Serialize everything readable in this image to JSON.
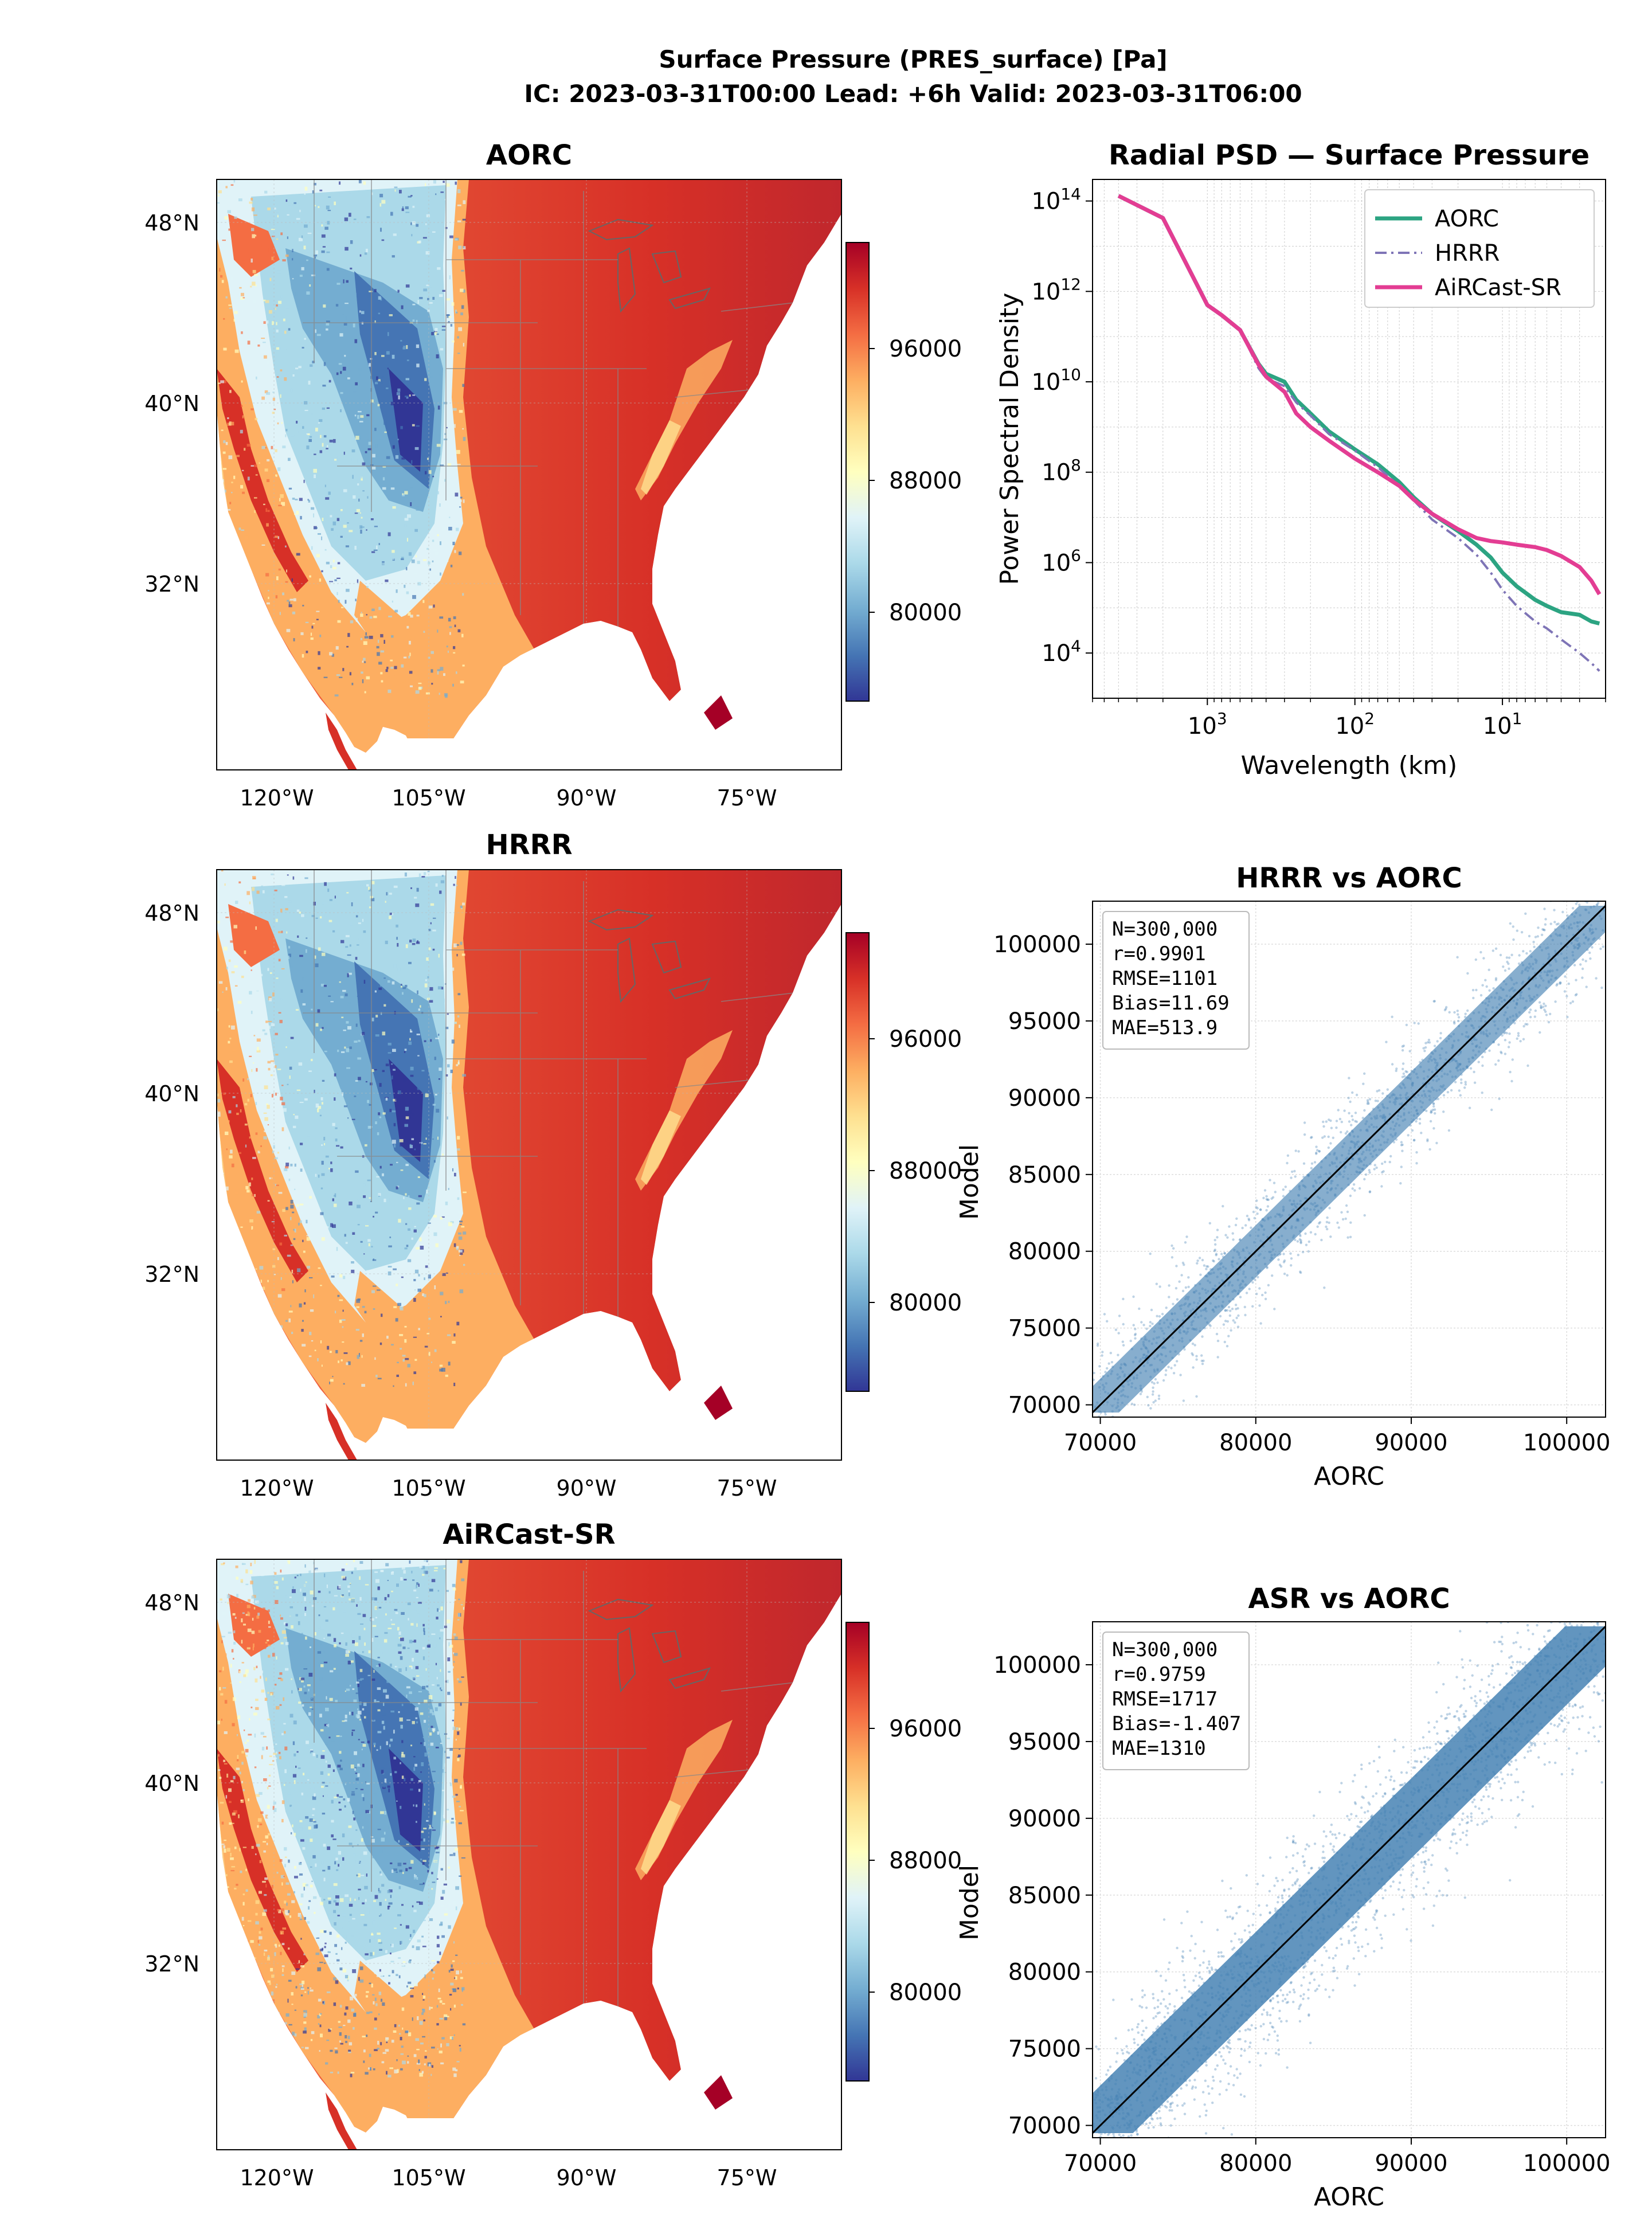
{
  "suptitle": {
    "line1": "Surface Pressure (PRES_surface) [Pa]",
    "line2": "IC: 2023-03-31T00:00  Lead: +6h  Valid: 2023-03-31T06:00"
  },
  "colors": {
    "aorc": "#2ca482",
    "hrrr": "#7e74b6",
    "aircast": "#e33d93",
    "scatter": "#4682b4"
  },
  "maps": {
    "lat_ticks": [
      "48°N",
      "40°N",
      "32°N"
    ],
    "lon_ticks": [
      "120°W",
      "105°W",
      "90°W",
      "75°W"
    ],
    "colorbar_ticks": [
      "96000",
      "88000",
      "80000"
    ],
    "colormap": "RdYlBu_r",
    "panels": [
      {
        "id": "aorc",
        "title": "AORC",
        "texture": 0
      },
      {
        "id": "hrrr",
        "title": "HRRR",
        "texture": 1
      },
      {
        "id": "aircast",
        "title": "AiRCast-SR",
        "texture": 2
      }
    ]
  },
  "chart_data": [
    {
      "type": "line",
      "title": "Radial PSD — Surface Pressure",
      "xlabel": "Wavelength (km)",
      "ylabel": "Power Spectral Density",
      "x_scale": "log-reversed",
      "y_scale": "log",
      "xlim": [
        6000,
        2
      ],
      "ylim": [
        1000,
        300000000000000.0
      ],
      "x_ticks": [
        1000,
        100,
        10
      ],
      "x_tick_labels": [
        "10",
        "10",
        "10"
      ],
      "x_tick_exponents": [
        "3",
        "2",
        "1"
      ],
      "y_ticks": [
        10000,
        1000000,
        100000000,
        10000000000,
        1000000000000,
        100000000000000
      ],
      "y_tick_labels": [
        "10",
        "10",
        "10",
        "10",
        "10",
        "10"
      ],
      "y_tick_exponents": [
        "4",
        "6",
        "8",
        "10",
        "12",
        "14"
      ],
      "grid": true,
      "legend_position": "top-right",
      "series": [
        {
          "name": "AORC",
          "style": "solid",
          "color_key": "aorc",
          "x": [
            4000,
            2000,
            1000,
            800,
            600,
            450,
            400,
            300,
            250,
            200,
            150,
            100,
            70,
            50,
            40,
            30,
            20,
            15,
            12,
            10,
            8,
            6,
            5,
            4,
            3,
            2.5,
            2.2
          ],
          "y": [
            130000000000000.0,
            42000000000000.0,
            500000000000.0,
            300000000000.0,
            140000000000.0,
            25000000000.0,
            15000000000.0,
            10000000000.0,
            4000000000.0,
            2000000000.0,
            800000000.0,
            320000000.0,
            150000000.0,
            60000000.0,
            28000000.0,
            12000000.0,
            5000000.0,
            2500000.0,
            1300000.0,
            600000.0,
            300000.0,
            150000.0,
            110000.0,
            80000.0,
            70000.0,
            50000.0,
            45000.0
          ]
        },
        {
          "name": "HRRR",
          "style": "dashdot",
          "color_key": "hrrr",
          "x": [
            4000,
            2000,
            1000,
            800,
            600,
            450,
            400,
            300,
            250,
            200,
            150,
            100,
            70,
            50,
            40,
            30,
            20,
            15,
            12,
            10,
            8,
            6,
            5,
            4,
            3,
            2.5,
            2.2
          ],
          "y": [
            130000000000000.0,
            42000000000000.0,
            500000000000.0,
            300000000000.0,
            140000000000.0,
            20000000000.0,
            12000000000.0,
            8000000000.0,
            3500000000.0,
            1800000000.0,
            700000000.0,
            300000000.0,
            130000000.0,
            50000000.0,
            24000000.0,
            9000000.0,
            3500000.0,
            1500000.0,
            600000.0,
            250000.0,
            110000.0,
            50000.0,
            35000.0,
            20000.0,
            10000.0,
            6000.0,
            4000.0
          ]
        },
        {
          "name": "AiRCast-SR",
          "style": "solid",
          "color_key": "aircast",
          "x": [
            4000,
            2000,
            1000,
            800,
            600,
            450,
            400,
            300,
            250,
            200,
            150,
            100,
            70,
            50,
            40,
            30,
            20,
            15,
            12,
            10,
            8,
            6,
            5,
            4,
            3,
            2.5,
            2.2
          ],
          "y": [
            130000000000000.0,
            42000000000000.0,
            500000000000.0,
            300000000000.0,
            140000000000.0,
            24000000000.0,
            13000000000.0,
            6000000000.0,
            2000000000.0,
            1000000000.0,
            500000000.0,
            200000000.0,
            100000000.0,
            50000000.0,
            25000000.0,
            12000000.0,
            5500000.0,
            3500000.0,
            3000000.0,
            2800000.0,
            2500000.0,
            2200000.0,
            1900000.0,
            1400000.0,
            800000.0,
            400000.0,
            200000.0
          ]
        }
      ]
    },
    {
      "type": "scatter",
      "title": "HRRR vs AORC",
      "xlabel": "AORC",
      "ylabel": "Model",
      "xlim": [
        69500,
        102500
      ],
      "ylim": [
        69200,
        102800
      ],
      "x_ticks": [
        70000,
        80000,
        90000,
        100000
      ],
      "y_ticks": [
        70000,
        75000,
        80000,
        85000,
        90000,
        95000,
        100000
      ],
      "grid": true,
      "reference_line": "1:1",
      "density": "light",
      "stats": [
        "N=300,000",
        "r=0.9901",
        "RMSE=1101",
        "Bias=11.69",
        "MAE=513.9"
      ],
      "stats_values": {
        "n": 300000,
        "r": 0.9901,
        "rmse": 1101,
        "bias": 11.69,
        "mae": 513.9
      }
    },
    {
      "type": "scatter",
      "title": "ASR vs AORC",
      "xlabel": "AORC",
      "ylabel": "Model",
      "xlim": [
        69500,
        102500
      ],
      "ylim": [
        69200,
        102800
      ],
      "x_ticks": [
        70000,
        80000,
        90000,
        100000
      ],
      "y_ticks": [
        70000,
        75000,
        80000,
        85000,
        90000,
        95000,
        100000
      ],
      "grid": true,
      "reference_line": "1:1",
      "density": "heavy",
      "stats": [
        "N=300,000",
        "r=0.9759",
        "RMSE=1717",
        "Bias=-1.407",
        "MAE=1310"
      ],
      "stats_values": {
        "n": 300000,
        "r": 0.9759,
        "rmse": 1717,
        "bias": -1.407,
        "mae": 1310
      }
    }
  ]
}
